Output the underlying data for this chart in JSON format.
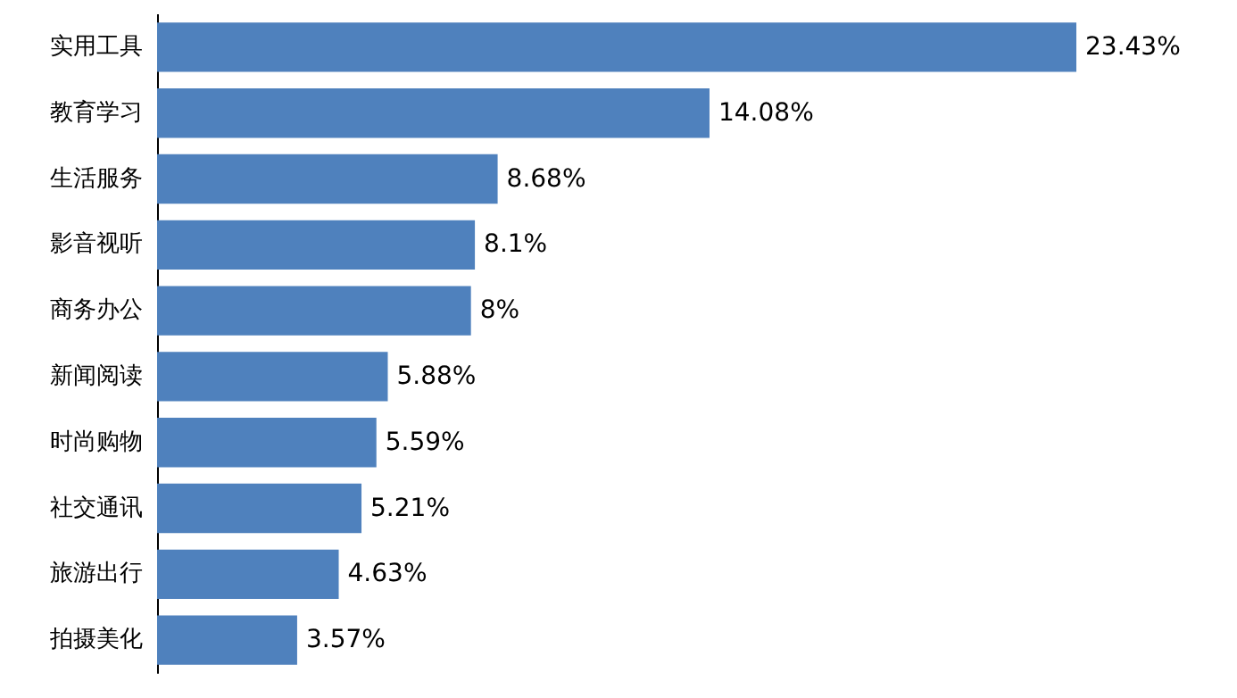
{
  "chart_data": {
    "type": "bar",
    "orientation": "horizontal",
    "categories": [
      "实用工具",
      "教育学习",
      "生活服务",
      "影音视听",
      "商务办公",
      "新闻阅读",
      "时尚购物",
      "社交通讯",
      "旅游出行",
      "拍摄美化"
    ],
    "values": [
      23.43,
      14.08,
      8.68,
      8.1,
      8,
      5.88,
      5.59,
      5.21,
      4.63,
      3.57
    ],
    "value_labels": [
      "23.43%",
      "14.08%",
      "8.68%",
      "8.1%",
      "8%",
      "5.88%",
      "5.59%",
      "5.21%",
      "4.63%",
      "3.57%"
    ],
    "color": "#4f81bd"
  }
}
